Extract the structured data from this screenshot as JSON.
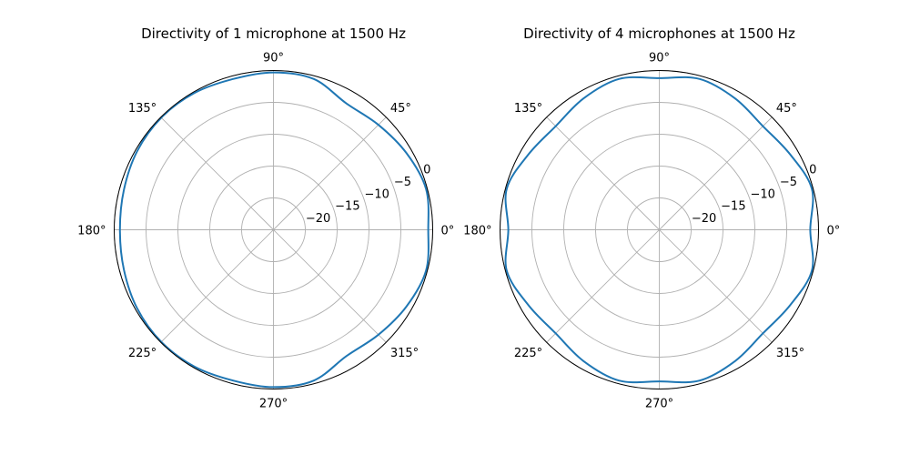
{
  "chart_data": [
    {
      "type": "line",
      "projection": "polar",
      "title": "Directivity of 1 microphone at 1500 Hz",
      "angle_tick_labels": [
        "0°",
        "45°",
        "90°",
        "135°",
        "180°",
        "225°",
        "270°",
        "315°"
      ],
      "radial_tick_labels": [
        "−20",
        "−15",
        "−10",
        "−5",
        "0"
      ],
      "rlim": [
        -25,
        0
      ],
      "grid": true,
      "series": [
        {
          "color": "#1f77b4",
          "theta_deg": [
            0,
            15,
            30,
            45,
            60,
            75,
            90,
            105,
            120,
            135,
            150,
            165,
            180,
            195,
            210,
            225,
            240,
            255,
            270,
            285,
            300,
            315,
            330,
            345
          ],
          "r_db": [
            -0.7,
            -0.2,
            -0.9,
            -1.7,
            -2.1,
            -0.5,
            -0.3,
            -0.5,
            -0.2,
            -0.1,
            -0.3,
            -0.7,
            -0.9,
            -0.7,
            -0.3,
            -0.1,
            -0.2,
            -0.5,
            -0.3,
            -0.5,
            -2.1,
            -1.7,
            -0.9,
            -0.2
          ]
        }
      ]
    },
    {
      "type": "line",
      "projection": "polar",
      "title": "Directivity of 4 microphones at 1500 Hz",
      "angle_tick_labels": [
        "0°",
        "45°",
        "90°",
        "135°",
        "180°",
        "225°",
        "270°",
        "315°"
      ],
      "radial_tick_labels": [
        "−20",
        "−15",
        "−10",
        "−5",
        "0"
      ],
      "rlim": [
        -25,
        0
      ],
      "grid": true,
      "series": [
        {
          "color": "#1f77b4",
          "theta_deg": [
            0,
            15,
            30,
            45,
            60,
            75,
            90,
            105,
            120,
            135,
            150,
            165,
            180,
            195,
            210,
            225,
            240,
            255,
            270,
            285,
            300,
            315,
            330,
            345
          ],
          "r_db": [
            -1.3,
            -0.2,
            -1.3,
            -2.0,
            -1.2,
            -0.5,
            -1.2,
            -0.5,
            -1.2,
            -2.0,
            -1.3,
            -0.2,
            -1.3,
            -0.2,
            -1.3,
            -2.0,
            -1.2,
            -0.5,
            -1.2,
            -0.5,
            -1.2,
            -2.0,
            -1.3,
            -0.2
          ]
        }
      ]
    }
  ]
}
